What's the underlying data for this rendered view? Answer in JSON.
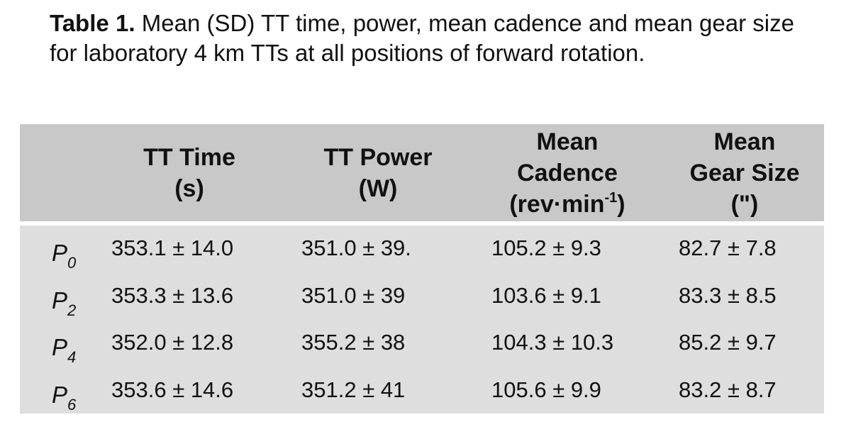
{
  "caption": {
    "label": "Table 1.",
    "text": "Mean (SD) TT time, power, mean cadence and mean gear size for laboratory 4 km TTs at all positions of forward rotation."
  },
  "table": {
    "header": [
      {
        "lines": [
          "TT Time",
          "(s)"
        ]
      },
      {
        "lines": [
          "TT Power",
          "(W)"
        ]
      },
      {
        "lines": [
          "Mean",
          "Cadence"
        ],
        "unit_open": "(rev·min",
        "unit_sup": "-1",
        "unit_close": ")"
      },
      {
        "lines": [
          "Mean",
          "Gear Size",
          "(\")"
        ]
      }
    ],
    "rows": [
      {
        "label": {
          "main": "P",
          "sub": "0"
        },
        "cells": [
          "353.1 ± 14.0",
          "351.0 ± 39.",
          "105.2 ± 9.3",
          "82.7 ± 7.8"
        ]
      },
      {
        "label": {
          "main": "P",
          "sub": "2"
        },
        "cells": [
          "353.3 ± 13.6",
          "351.0 ± 39",
          "103.6 ± 9.1",
          "83.3 ± 8.5"
        ]
      },
      {
        "label": {
          "main": "P",
          "sub": "4"
        },
        "cells": [
          "352.0 ± 12.8",
          "355.2 ± 38",
          "104.3 ± 10.3",
          "85.2 ± 9.7"
        ]
      },
      {
        "label": {
          "main": "P",
          "sub": "6"
        },
        "cells": [
          "353.6 ± 14.6",
          "351.2 ± 41",
          "105.6 ± 9.9",
          "83.2 ± 8.7"
        ]
      }
    ]
  }
}
